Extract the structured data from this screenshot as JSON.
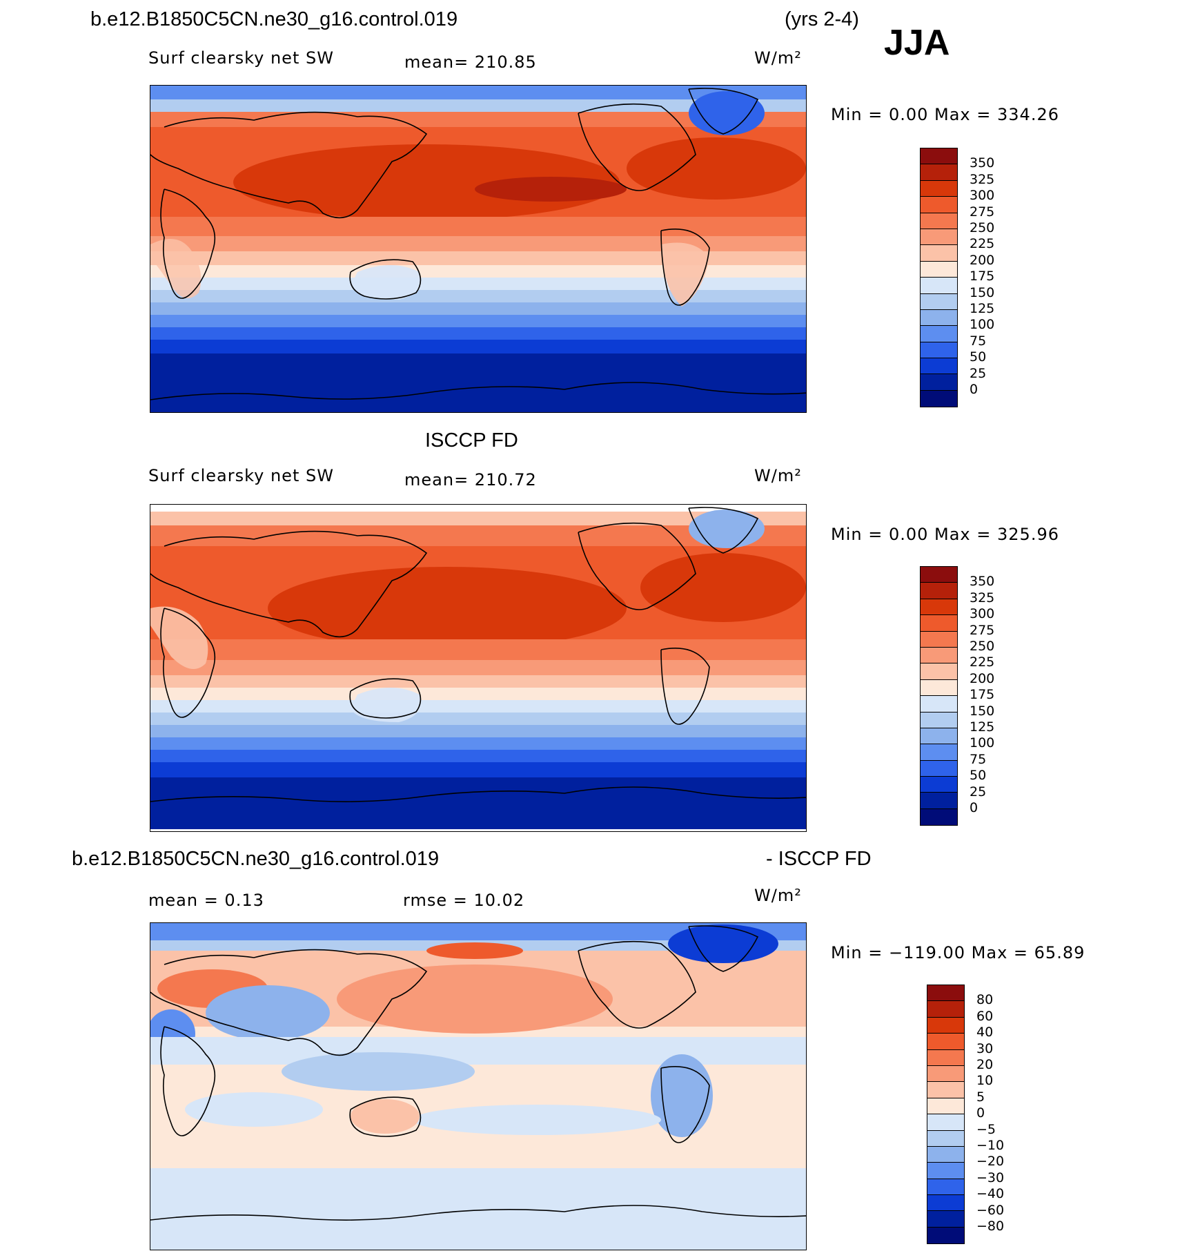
{
  "header": {
    "case_name": "b.e12.B1850C5CN.ne30_g16.control.019",
    "years": "(yrs 2-4)",
    "season": "JJA"
  },
  "chart_data": [
    {
      "type": "heatmap",
      "title": "b.e12.B1850C5CN.ne30_g16.control.019",
      "variable": "Surf clearsky net SW",
      "stat_text": "mean=  210.85",
      "mean": 210.85,
      "units": "W/m²",
      "minmax_text": "Min  =     0.00  Max  =  334.26",
      "min": 0.0,
      "max": 334.26,
      "levels": [
        "350",
        "325",
        "300",
        "275",
        "250",
        "225",
        "200",
        "175",
        "150",
        "125",
        "100",
        "75",
        "50",
        "25",
        "0"
      ],
      "colors": [
        "#8b0d0d",
        "#b5210a",
        "#d8380a",
        "#ee5a2c",
        "#f4784f",
        "#f89a78",
        "#fbc2a8",
        "#fde8d9",
        "#d7e6f8",
        "#b2cdf0",
        "#8db2ec",
        "#5d8ef0",
        "#2f63ea",
        "#0c3cd4",
        "#00209e",
        "#000c78"
      ]
    },
    {
      "type": "heatmap",
      "title": "ISCCP FD",
      "variable": "Surf clearsky net SW",
      "stat_text": "mean=  210.72",
      "mean": 210.72,
      "units": "W/m²",
      "minmax_text": "Min  =     0.00  Max  =  325.96",
      "min": 0.0,
      "max": 325.96,
      "levels": [
        "350",
        "325",
        "300",
        "275",
        "250",
        "225",
        "200",
        "175",
        "150",
        "125",
        "100",
        "75",
        "50",
        "25",
        "0"
      ],
      "colors": [
        "#8b0d0d",
        "#b5210a",
        "#d8380a",
        "#ee5a2c",
        "#f4784f",
        "#f89a78",
        "#fbc2a8",
        "#fde8d9",
        "#d7e6f8",
        "#b2cdf0",
        "#8db2ec",
        "#5d8ef0",
        "#2f63ea",
        "#0c3cd4",
        "#00209e",
        "#000c78"
      ]
    },
    {
      "type": "heatmap",
      "title": "b.e12.B1850C5CN.ne30_g16.control.019",
      "title_right": "- ISCCP FD",
      "stat_mean_text": "mean  =    0.13",
      "stat_rmse_text": "rmse  =   10.02",
      "mean": 0.13,
      "rmse": 10.02,
      "units": "W/m²",
      "minmax_text": "Min  =  −119.00  Max  =   65.89",
      "min": -119.0,
      "max": 65.89,
      "levels": [
        "80",
        "60",
        "40",
        "30",
        "20",
        "10",
        "5",
        "0",
        "−5",
        "−10",
        "−20",
        "−30",
        "−40",
        "−60",
        "−80"
      ],
      "colors": [
        "#8b0d0d",
        "#b5210a",
        "#d8380a",
        "#ee5a2c",
        "#f4784f",
        "#f89a78",
        "#fbc2a8",
        "#fde8d9",
        "#d7e6f8",
        "#b2cdf0",
        "#8db2ec",
        "#5d8ef0",
        "#2f63ea",
        "#0c3cd4",
        "#00209e",
        "#000c78"
      ]
    }
  ]
}
